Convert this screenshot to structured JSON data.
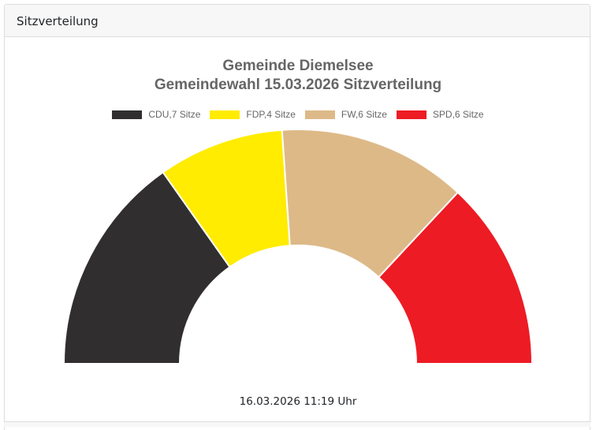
{
  "card": {
    "header": "Sitzverteilung"
  },
  "chart_data": {
    "type": "pie",
    "title": [
      "Gemeinde Diemelsee",
      "Gemeindewahl 15.03.2026 Sitzverteilung"
    ],
    "legend_position": "top",
    "series": [
      {
        "name": "CDU",
        "label": "CDU,7 Sitze",
        "value": 7,
        "color": "#312e2f"
      },
      {
        "name": "FDP",
        "label": "FDP,4 Sitze",
        "value": 4,
        "color": "#ffec00"
      },
      {
        "name": "FW",
        "label": "FW,6 Sitze",
        "value": 6,
        "color": "#ddb988"
      },
      {
        "name": "SPD",
        "label": "SPD,6 Sitze",
        "value": 6,
        "color": "#ed1b24"
      }
    ]
  },
  "timestamp": "16.03.2026 11:19 Uhr"
}
